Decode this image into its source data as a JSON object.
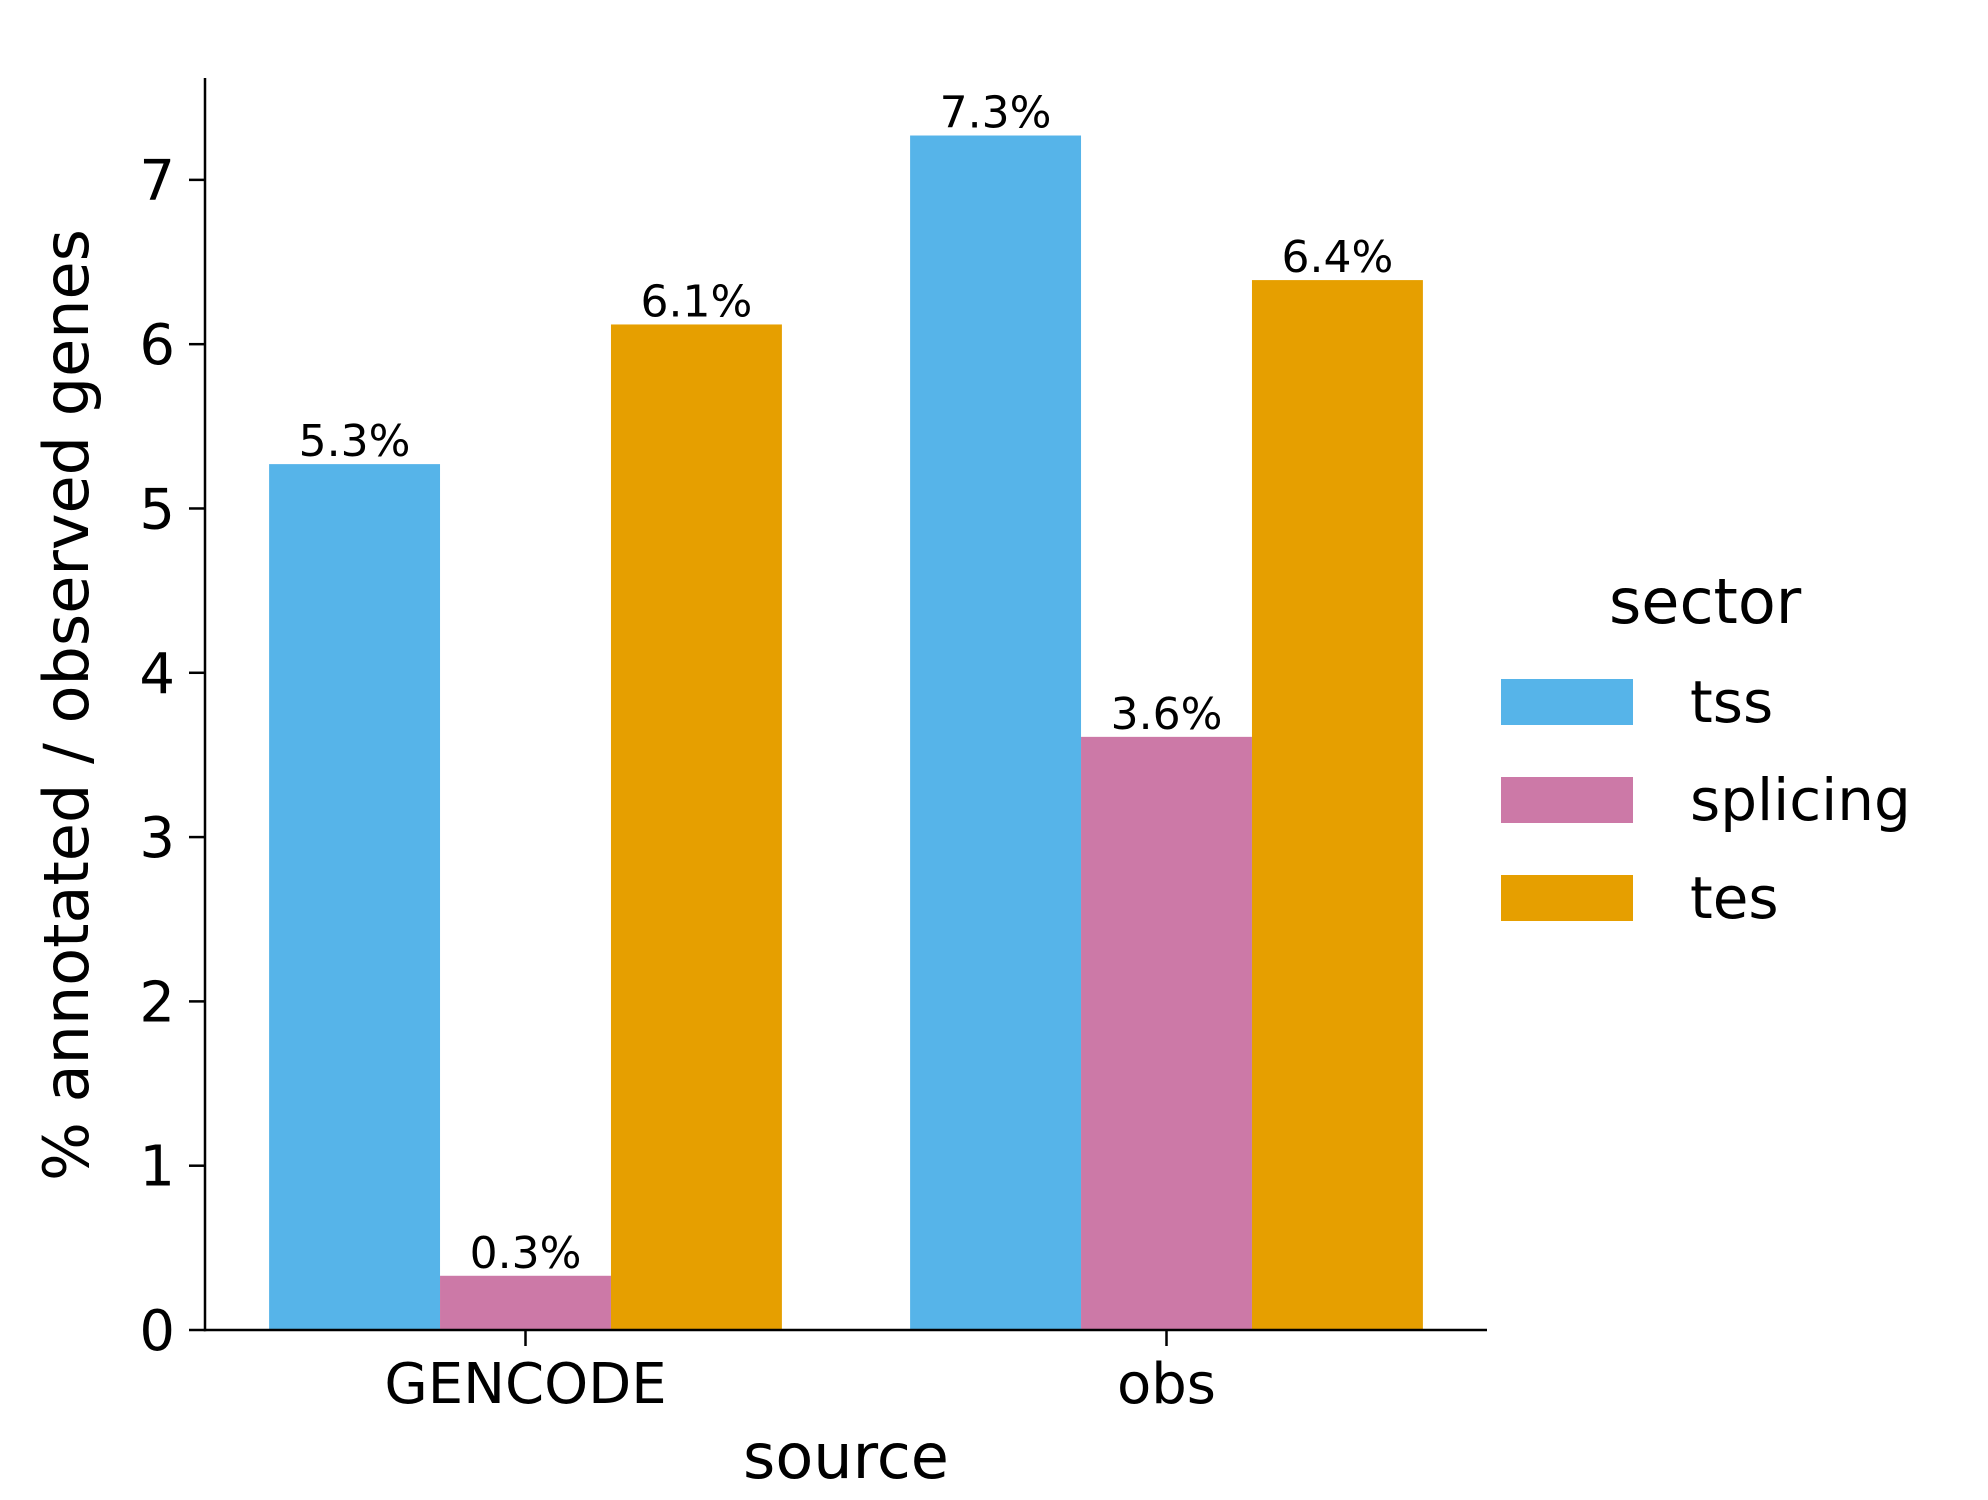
{
  "chart_data": {
    "type": "bar",
    "title": "",
    "xlabel": "source",
    "ylabel": "% annotated / observed genes",
    "categories": [
      "GENCODE",
      "obs"
    ],
    "series": [
      {
        "name": "tss",
        "color": "#56B4E9",
        "values": [
          5.27,
          7.27
        ],
        "labels": [
          "5.3%",
          "7.3%"
        ]
      },
      {
        "name": "splicing",
        "color": "#CC79A7",
        "values": [
          0.33,
          3.61
        ],
        "labels": [
          "0.3%",
          "3.6%"
        ]
      },
      {
        "name": "tes",
        "color": "#E69F00",
        "values": [
          6.12,
          6.39
        ],
        "labels": [
          "6.1%",
          "6.4%"
        ]
      }
    ],
    "ylim": [
      0,
      7.62
    ],
    "yticks": [
      "0",
      "1",
      "2",
      "3",
      "4",
      "5",
      "6",
      "7"
    ],
    "grid": false,
    "legend": {
      "title": "sector",
      "placement": "right",
      "entries": [
        "tss",
        "splicing",
        "tes"
      ]
    }
  }
}
